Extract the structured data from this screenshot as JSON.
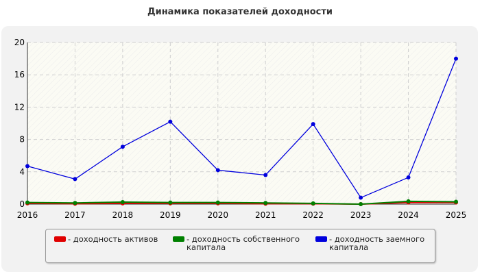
{
  "chart_data": {
    "type": "line",
    "title": "Динамика показателей доходности",
    "xlabel": "",
    "ylabel": "",
    "x": [
      "2016",
      "2017",
      "2018",
      "2019",
      "2020",
      "2021",
      "2022",
      "2023",
      "2024",
      "2025"
    ],
    "ylim": [
      0,
      20
    ],
    "yticks": [
      "0",
      "4",
      "8",
      "12",
      "16",
      "20"
    ],
    "grid": true,
    "legend_position": "bottom",
    "series": [
      {
        "name": "- доходность активов",
        "color": "#e00000",
        "values": [
          0.1,
          0.05,
          0.1,
          0.1,
          0.1,
          0.05,
          0.05,
          0.0,
          0.2,
          0.2
        ]
      },
      {
        "name": "- доходность собственного капитала",
        "color": "#008000",
        "values": [
          0.2,
          0.15,
          0.25,
          0.2,
          0.2,
          0.15,
          0.1,
          0.0,
          0.35,
          0.3
        ]
      },
      {
        "name": "- доходность заемного капитала",
        "color": "#0000dd",
        "values": [
          4.7,
          3.1,
          7.1,
          10.2,
          4.2,
          3.6,
          9.9,
          0.8,
          3.3,
          18.0
        ]
      }
    ]
  }
}
